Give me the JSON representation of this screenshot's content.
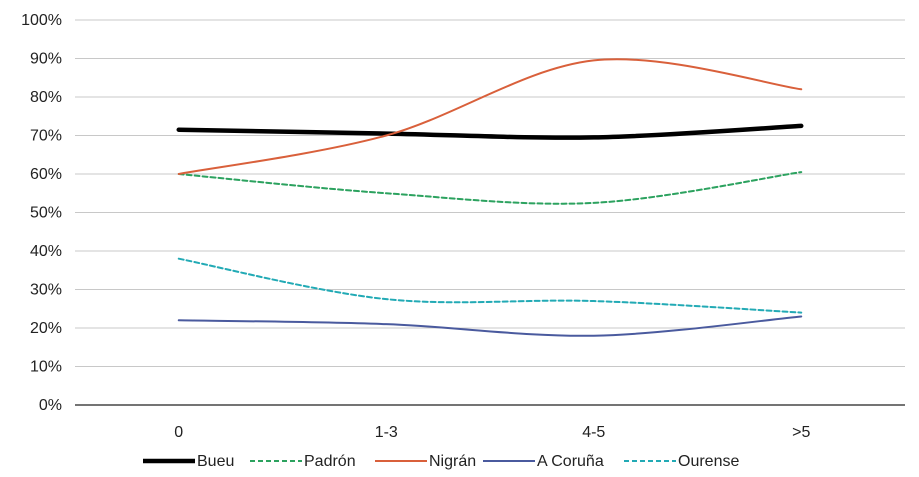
{
  "chart_data": {
    "type": "line",
    "categories": [
      "0",
      "1-3",
      "4-5",
      ">5"
    ],
    "ylim": [
      0,
      1
    ],
    "y_ticks": [
      "0%",
      "10%",
      "20%",
      "30%",
      "40%",
      "50%",
      "60%",
      "70%",
      "80%",
      "90%",
      "100%"
    ],
    "grid": "horizontal",
    "smooth": true,
    "legend_position": "bottom",
    "series": [
      {
        "name": "Bueu",
        "values": [
          0.715,
          0.705,
          0.695,
          0.725
        ],
        "color": "#000000",
        "dash": "solid",
        "weight": "thick"
      },
      {
        "name": "Padrón",
        "values": [
          0.6,
          0.55,
          0.525,
          0.605
        ],
        "color": "#2ca25f",
        "dash": "dashed",
        "weight": "normal"
      },
      {
        "name": "Nigrán",
        "values": [
          0.6,
          0.7,
          0.895,
          0.82
        ],
        "color": "#d9603b",
        "dash": "solid",
        "weight": "normal"
      },
      {
        "name": "A Coruña",
        "values": [
          0.22,
          0.21,
          0.18,
          0.23
        ],
        "color": "#4a5a9e",
        "dash": "solid",
        "weight": "normal"
      },
      {
        "name": "Ourense",
        "values": [
          0.38,
          0.275,
          0.27,
          0.24
        ],
        "color": "#22aab5",
        "dash": "dashed",
        "weight": "normal"
      }
    ]
  }
}
